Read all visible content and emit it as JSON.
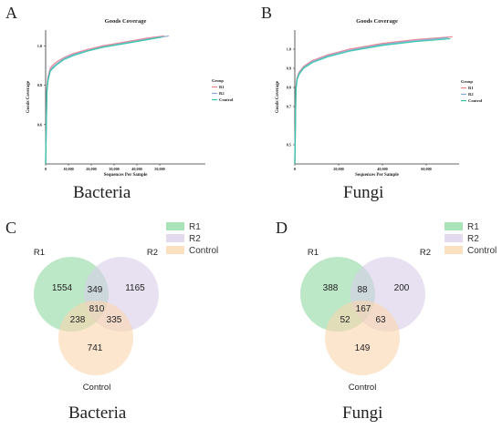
{
  "panels": {
    "A": {
      "letter": "A",
      "caption": "Bacteria"
    },
    "B": {
      "letter": "B",
      "caption": "Fungi"
    },
    "C": {
      "letter": "C",
      "caption": "Bacteria"
    },
    "D": {
      "letter": "D",
      "caption": "Fungi"
    }
  },
  "colors": {
    "R1_line": "#e8808a",
    "R2_line": "#8aa6d8",
    "Control_line": "#2fc7a6",
    "R1_venn": "#8fd9a2",
    "R2_venn": "#d9cdea",
    "Control_venn": "#fad5ad"
  },
  "chart_data": [
    {
      "type": "line",
      "title": "Goods Coverage",
      "xlabel": "Sequences Per Sample",
      "ylabel": "Goods Coverage",
      "xlim": [
        0,
        70000
      ],
      "ylim": [
        0.4,
        1.08
      ],
      "x_ticks": [
        0,
        10000,
        20000,
        30000,
        40000,
        50000
      ],
      "x_tick_labels": [
        "0",
        "10,000",
        "20,000",
        "30,000",
        "40,000",
        "50,000"
      ],
      "y_ticks": [
        0.6,
        0.8,
        1.0
      ],
      "y_tick_labels": [
        "0.6",
        "0.8",
        "1.0"
      ],
      "legend_title": "Group",
      "legend_position": "right",
      "series": [
        {
          "name": "R1",
          "x": [
            0,
            500,
            1000,
            2000,
            3000,
            5000,
            8000,
            12000,
            18000,
            25000,
            35000,
            45000,
            52000
          ],
          "y": [
            0.4,
            0.78,
            0.84,
            0.885,
            0.9,
            0.92,
            0.94,
            0.96,
            0.98,
            1.0,
            1.02,
            1.04,
            1.05
          ]
        },
        {
          "name": "R2",
          "x": [
            0,
            500,
            1000,
            2000,
            3000,
            5000,
            8000,
            12000,
            18000,
            25000,
            35000,
            45000,
            54000
          ],
          "y": [
            0.4,
            0.77,
            0.83,
            0.875,
            0.89,
            0.91,
            0.935,
            0.955,
            0.975,
            0.995,
            1.015,
            1.035,
            1.05
          ]
        },
        {
          "name": "Control",
          "x": [
            0,
            500,
            1000,
            2000,
            3000,
            5000,
            8000,
            12000,
            18000,
            25000,
            35000,
            45000,
            51000
          ],
          "y": [
            0.4,
            0.76,
            0.82,
            0.87,
            0.885,
            0.905,
            0.93,
            0.95,
            0.972,
            0.992,
            1.012,
            1.032,
            1.045
          ]
        }
      ]
    },
    {
      "type": "line",
      "title": "Goods Coverage",
      "xlabel": "Sequences Per Sample",
      "ylabel": "Goods Coverage",
      "xlim": [
        0,
        75000
      ],
      "ylim": [
        0.4,
        1.1
      ],
      "x_ticks": [
        0,
        20000,
        40000,
        60000
      ],
      "x_tick_labels": [
        "0",
        "20,000",
        "40,000",
        "60,000"
      ],
      "y_ticks": [
        0.5,
        0.7,
        0.8,
        0.9,
        1.0
      ],
      "y_tick_labels": [
        "0.5",
        "0.7",
        "0.8",
        "0.9",
        "1.0"
      ],
      "legend_title": "Group",
      "legend_position": "right",
      "series": [
        {
          "name": "R1",
          "x": [
            0,
            500,
            1000,
            2000,
            4000,
            8000,
            15000,
            25000,
            40000,
            55000,
            72000
          ],
          "y": [
            0.4,
            0.8,
            0.85,
            0.88,
            0.91,
            0.94,
            0.97,
            1.0,
            1.03,
            1.05,
            1.065
          ]
        },
        {
          "name": "R2",
          "x": [
            0,
            500,
            1000,
            2000,
            4000,
            8000,
            15000,
            25000,
            40000,
            55000,
            70000
          ],
          "y": [
            0.4,
            0.79,
            0.845,
            0.875,
            0.905,
            0.935,
            0.965,
            0.995,
            1.025,
            1.045,
            1.06
          ]
        },
        {
          "name": "Control",
          "x": [
            0,
            500,
            1000,
            2000,
            4000,
            8000,
            15000,
            25000,
            40000,
            55000,
            71000
          ],
          "y": [
            0.4,
            0.785,
            0.84,
            0.87,
            0.9,
            0.93,
            0.96,
            0.99,
            1.02,
            1.04,
            1.055
          ]
        }
      ]
    },
    {
      "type": "venn",
      "sets": [
        "R1",
        "R2",
        "Control"
      ],
      "regions": {
        "R1_only": 1554,
        "R2_only": 1165,
        "Control_only": 741,
        "R1_R2": 349,
        "R1_Control": 238,
        "R2_Control": 335,
        "R1_R2_Control": 810
      },
      "legend": [
        "R1",
        "R2",
        "Control"
      ],
      "legend_position": "top-right"
    },
    {
      "type": "venn",
      "sets": [
        "R1",
        "R2",
        "Control"
      ],
      "regions": {
        "R1_only": 388,
        "R2_only": 200,
        "Control_only": 149,
        "R1_R2": 88,
        "R1_Control": 52,
        "R2_Control": 63,
        "R1_R2_Control": 167
      },
      "legend": [
        "R1",
        "R2",
        "Control"
      ],
      "legend_position": "top-right"
    }
  ]
}
